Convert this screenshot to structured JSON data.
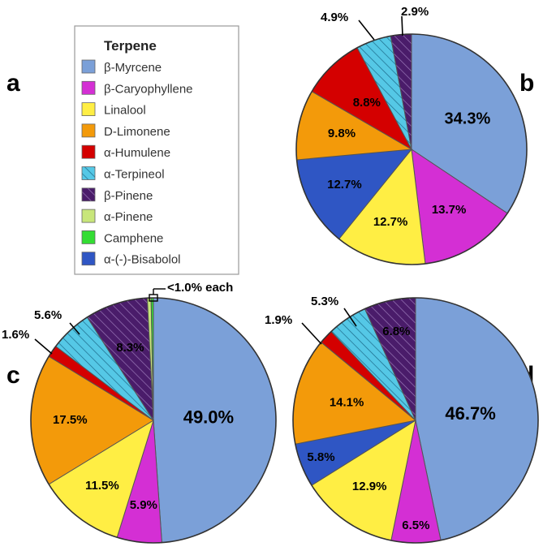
{
  "legend": {
    "title": "Terpene",
    "items": [
      {
        "name": "β-Myrcene",
        "color": "#7ba0d8",
        "hatch": false
      },
      {
        "name": "β-Caryophyllene",
        "color": "#d42fd4",
        "hatch": false
      },
      {
        "name": "Linalool",
        "color": "#ffee44",
        "hatch": false
      },
      {
        "name": "D-Limonene",
        "color": "#f39a0a",
        "hatch": false
      },
      {
        "name": "α-Humulene",
        "color": "#d40000",
        "hatch": false
      },
      {
        "name": "α-Terpineol",
        "color": "#55c8e6",
        "hatch": true
      },
      {
        "name": "β-Pinene",
        "color": "#4a1c6a",
        "hatch": true
      },
      {
        "name": "α-Pinene",
        "color": "#c8e67a",
        "hatch": false
      },
      {
        "name": "Camphene",
        "color": "#33dd33",
        "hatch": false
      },
      {
        "name": "α-(-)-Bisabolol",
        "color": "#2f56c4",
        "hatch": false
      }
    ]
  },
  "chart_data": [
    {
      "type": "pie",
      "panel": "b",
      "labels": [
        "β-Myrcene",
        "β-Caryophyllene",
        "Linalool",
        "α-(-)-Bisabolol",
        "D-Limonene",
        "α-Humulene",
        "α-Terpineol",
        "β-Pinene"
      ],
      "values": [
        34.3,
        13.7,
        12.7,
        12.7,
        9.8,
        8.8,
        4.9,
        2.9
      ],
      "value_labels": [
        "34.3%",
        "13.7%",
        "12.7%",
        "12.7%",
        "9.8%",
        "8.8%",
        "4.9%",
        "2.9%"
      ]
    },
    {
      "type": "pie",
      "panel": "c",
      "labels": [
        "β-Myrcene",
        "β-Caryophyllene",
        "Linalool",
        "D-Limonene",
        "α-Humulene",
        "α-Terpineol",
        "β-Pinene",
        "α-Pinene",
        "Camphene"
      ],
      "values": [
        49.0,
        5.9,
        11.5,
        17.5,
        1.6,
        5.6,
        8.3,
        0.5,
        0.3
      ],
      "value_labels": [
        "49.0%",
        "5.9%",
        "11.5%",
        "17.5%",
        "1.6%",
        "5.6%",
        "8.3%",
        "",
        ""
      ],
      "group_annotation": "<1.0% each"
    },
    {
      "type": "pie",
      "panel": "d",
      "labels": [
        "β-Myrcene",
        "β-Caryophyllene",
        "Linalool",
        "α-(-)-Bisabolol",
        "D-Limonene",
        "α-Humulene",
        "α-Terpineol",
        "β-Pinene"
      ],
      "values": [
        46.7,
        6.5,
        12.9,
        5.8,
        14.1,
        1.9,
        5.3,
        6.8
      ],
      "value_labels": [
        "46.7%",
        "6.5%",
        "12.9%",
        "5.8%",
        "14.1%",
        "1.9%",
        "5.3%",
        "6.8%"
      ]
    }
  ],
  "panel_letters": {
    "a": "a",
    "b": "b",
    "c": "c",
    "d": "d"
  }
}
